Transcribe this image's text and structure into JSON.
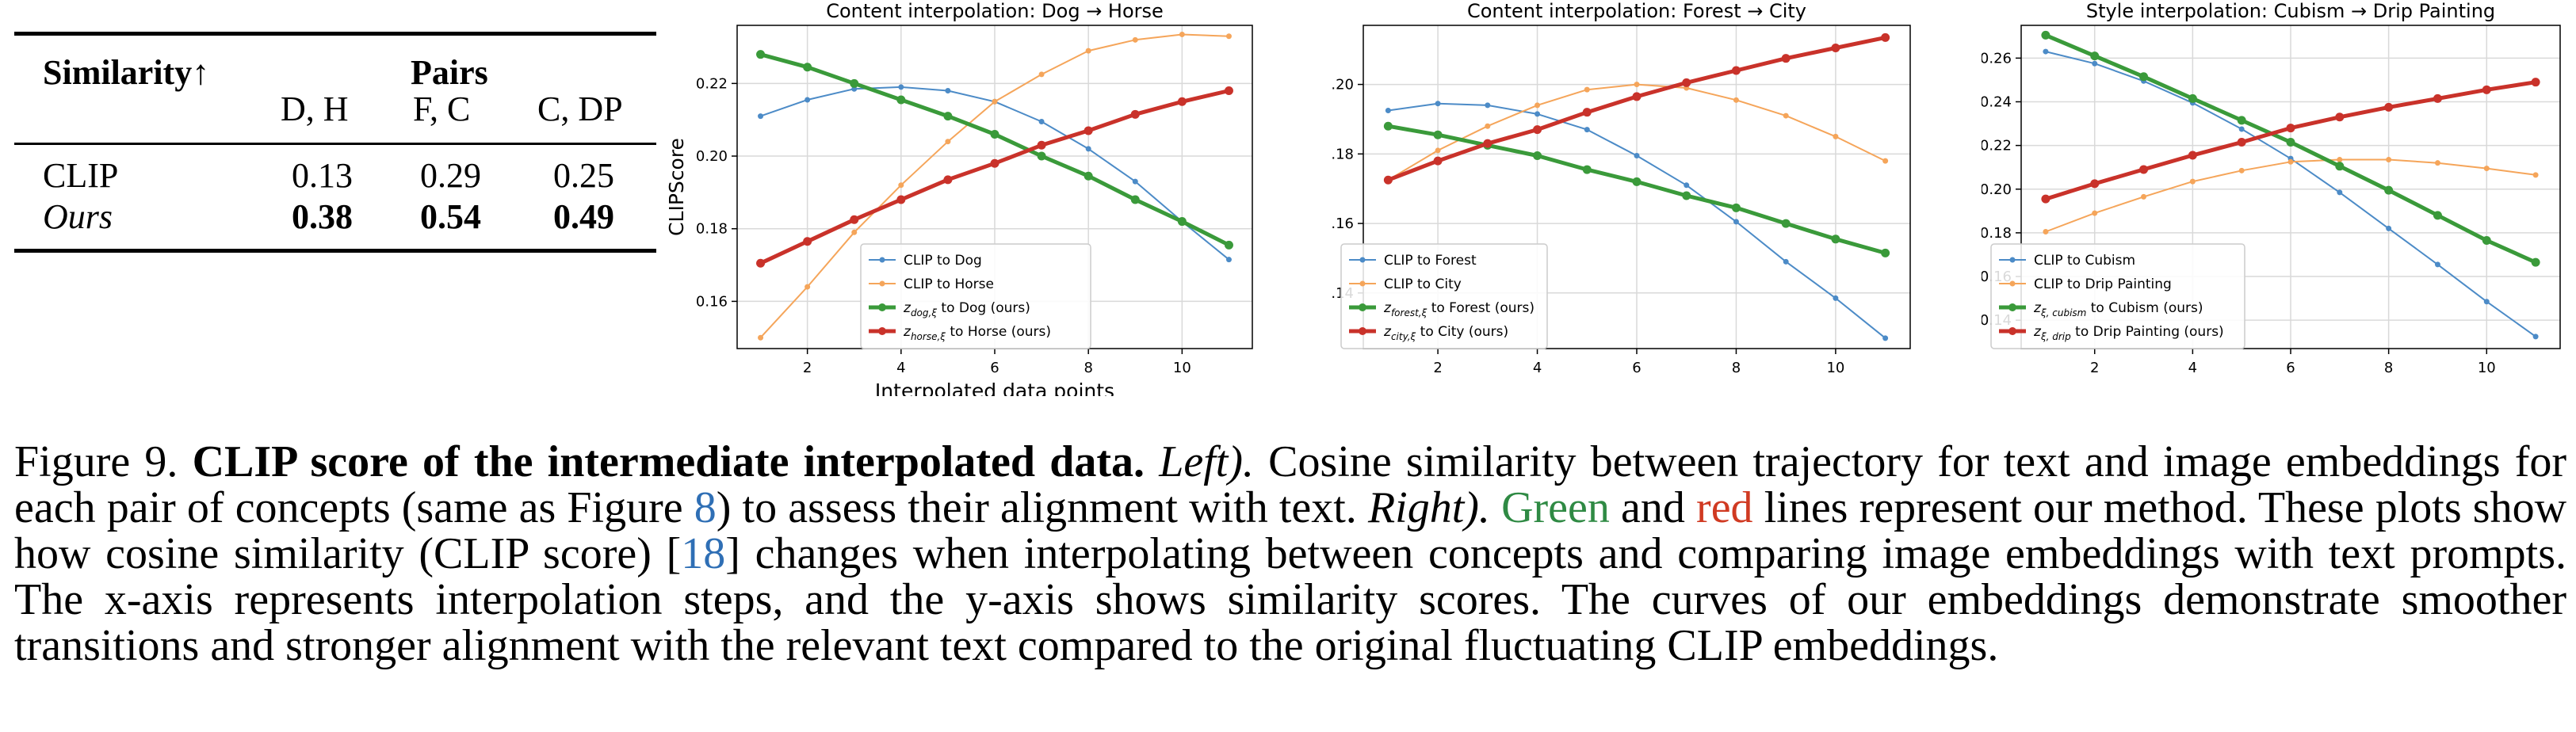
{
  "table": {
    "header_similarity": "Similarity↑",
    "header_pairs": "Pairs",
    "columns": [
      "D, H",
      "F, C",
      "C, DP"
    ],
    "rows": [
      {
        "label": "CLIP",
        "values": [
          "0.13",
          "0.29",
          "0.25"
        ],
        "emphasis": false
      },
      {
        "label": "Ours",
        "values": [
          "0.38",
          "0.54",
          "0.49"
        ],
        "emphasis": true
      }
    ]
  },
  "chart_data": [
    {
      "type": "line",
      "title": "Content interpolation: Dog → Horse",
      "xlabel": "Interpolated data points",
      "ylabel": "CLIPScore",
      "xlim": [
        0.5,
        11.5
      ],
      "ylim": [
        0.147,
        0.236
      ],
      "xticks": [
        2,
        4,
        6,
        8,
        10
      ],
      "xtick_labels": [
        "2",
        "4",
        "6",
        "8",
        "10"
      ],
      "yticks": [
        0.16,
        0.18,
        0.2,
        0.22
      ],
      "ytick_labels": [
        "0.16",
        "0.18",
        "0.20",
        "0.22"
      ],
      "grid": true,
      "legend_position": "bottom-center",
      "x": [
        1,
        2,
        3,
        4,
        5,
        6,
        7,
        8,
        9,
        10,
        11
      ],
      "series": [
        {
          "name": "CLIP to Dog",
          "sub": "",
          "color": "#4c8bc7",
          "style": "thin",
          "values": [
            0.211,
            0.2155,
            0.2185,
            0.219,
            0.218,
            0.215,
            0.2095,
            0.202,
            0.193,
            0.182,
            0.1715
          ]
        },
        {
          "name": "CLIP to Horse",
          "sub": "",
          "color": "#f5a55a",
          "style": "thin",
          "values": [
            0.15,
            0.164,
            0.179,
            0.192,
            0.204,
            0.215,
            0.2225,
            0.229,
            0.232,
            0.2335,
            0.233
          ]
        },
        {
          "name": "z",
          "sub": "dog,ξ",
          "suffix": " to Dog (ours)",
          "color": "#3a9a3a",
          "style": "thick",
          "values": [
            0.228,
            0.2245,
            0.22,
            0.2155,
            0.211,
            0.206,
            0.2,
            0.1945,
            0.188,
            0.182,
            0.1755
          ]
        },
        {
          "name": "z",
          "sub": "horse,ξ",
          "suffix": " to Horse (ours)",
          "color": "#c9322a",
          "style": "thick",
          "values": [
            0.1705,
            0.1765,
            0.1825,
            0.188,
            0.1935,
            0.198,
            0.203,
            0.207,
            0.2115,
            0.215,
            0.218
          ]
        }
      ]
    },
    {
      "type": "line",
      "title": "Content interpolation: Forest → City",
      "xlabel": "",
      "ylabel": "",
      "xlim": [
        0.5,
        11.5
      ],
      "ylim": [
        0.124,
        0.217
      ],
      "xticks": [
        2,
        4,
        6,
        8,
        10
      ],
      "xtick_labels": [
        "2",
        "4",
        "6",
        "8",
        "10"
      ],
      "yticks": [
        0.14,
        0.16,
        0.18,
        0.2
      ],
      "ytick_labels": [
        "0.14",
        "0.16",
        "0.18",
        "0.20"
      ],
      "grid": true,
      "legend_position": "bottom-left",
      "x": [
        1,
        2,
        3,
        4,
        5,
        6,
        7,
        8,
        9,
        10,
        11
      ],
      "series": [
        {
          "name": "CLIP to Forest",
          "sub": "",
          "color": "#4c8bc7",
          "style": "thin",
          "values": [
            0.1925,
            0.1945,
            0.194,
            0.1915,
            0.187,
            0.1795,
            0.171,
            0.1605,
            0.149,
            0.1385,
            0.127
          ]
        },
        {
          "name": "CLIP to City",
          "sub": "",
          "color": "#f5a55a",
          "style": "thin",
          "values": [
            0.1725,
            0.181,
            0.188,
            0.194,
            0.1985,
            0.2,
            0.199,
            0.1955,
            0.191,
            0.185,
            0.178
          ]
        },
        {
          "name": "z",
          "sub": "forest,ξ",
          "suffix": " to Forest (ours)",
          "color": "#3a9a3a",
          "style": "thick",
          "values": [
            0.188,
            0.1855,
            0.1825,
            0.1795,
            0.1755,
            0.172,
            0.168,
            0.1645,
            0.16,
            0.1555,
            0.1515
          ]
        },
        {
          "name": "z",
          "sub": "city,ξ",
          "suffix": " to City (ours)",
          "color": "#c9322a",
          "style": "thick",
          "values": [
            0.1725,
            0.178,
            0.183,
            0.187,
            0.192,
            0.1965,
            0.2005,
            0.204,
            0.2075,
            0.2105,
            0.2135
          ]
        }
      ]
    },
    {
      "type": "line",
      "title": "Style interpolation: Cubism → Drip Painting",
      "xlabel": "",
      "ylabel": "",
      "xlim": [
        0.5,
        11.5
      ],
      "ylim": [
        0.127,
        0.275
      ],
      "xticks": [
        2,
        4,
        6,
        8,
        10
      ],
      "xtick_labels": [
        "2",
        "4",
        "6",
        "8",
        "10"
      ],
      "yticks": [
        0.14,
        0.16,
        0.18,
        0.2,
        0.22,
        0.24,
        0.26
      ],
      "ytick_labels": [
        "0.14",
        "0.16",
        "0.18",
        "0.20",
        "0.22",
        "0.24",
        "0.26"
      ],
      "grid": true,
      "legend_position": "bottom-left",
      "x": [
        1,
        2,
        3,
        4,
        5,
        6,
        7,
        8,
        9,
        10,
        11
      ],
      "series": [
        {
          "name": "CLIP to Cubism",
          "sub": "",
          "color": "#4c8bc7",
          "style": "thin",
          "values": [
            0.263,
            0.2575,
            0.2495,
            0.2395,
            0.2275,
            0.214,
            0.1985,
            0.182,
            0.1655,
            0.1485,
            0.1325
          ]
        },
        {
          "name": "CLIP to Drip Painting",
          "sub": "",
          "color": "#f5a55a",
          "style": "thin",
          "values": [
            0.1805,
            0.189,
            0.1965,
            0.2035,
            0.2085,
            0.2125,
            0.2135,
            0.2135,
            0.212,
            0.2095,
            0.2065
          ]
        },
        {
          "name": "z",
          "sub": "ξ, cubism",
          "suffix": " to Cubism (ours)",
          "color": "#3a9a3a",
          "style": "thick",
          "values": [
            0.2705,
            0.261,
            0.2515,
            0.2415,
            0.2315,
            0.2215,
            0.2105,
            0.1995,
            0.188,
            0.1765,
            0.1665
          ]
        },
        {
          "name": "z",
          "sub": "ξ, drip",
          "suffix": " to Drip Painting  (ours)",
          "color": "#c9322a",
          "style": "thick",
          "values": [
            0.1955,
            0.2025,
            0.209,
            0.2155,
            0.2215,
            0.228,
            0.233,
            0.2375,
            0.2415,
            0.2455,
            0.249
          ]
        }
      ]
    }
  ],
  "caption": {
    "figure_label": "Figure 9.",
    "bold_title": "CLIP score of the intermediate interpolated data.",
    "left_label": "Left).",
    "text_1": " Cosine similarity between trajectory for text and image embeddings for each pair of concepts (same as Figure ",
    "figure_ref": "8",
    "text_2": ") to assess their alignment with text. ",
    "right_label": "Right).",
    "green_word": "Green",
    "text_and": " and ",
    "red_word": "red",
    "text_3": " lines represent our method. These plots show how cosine similarity (CLIP score) [",
    "citation": "18",
    "text_4": "] changes when interpolating between concepts and comparing image embeddings with text prompts. The x-axis represents interpolation steps, and the y-axis shows similarity scores. The curves of our embeddings demonstrate smoother transitions and stronger alignment with the relevant text compared to the original fluctuating CLIP embeddings."
  }
}
